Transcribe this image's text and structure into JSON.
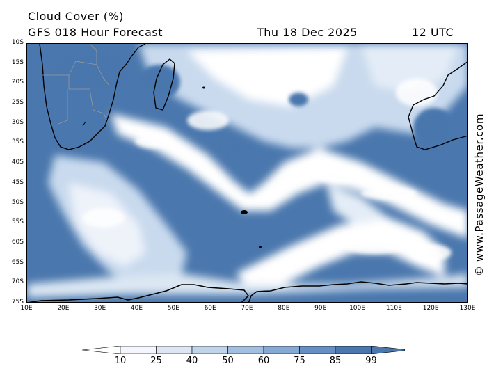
{
  "header": {
    "title": "Cloud Cover (%)",
    "subtitle": "GFS 018 Hour Forecast",
    "date": "Thu 18 Dec 2025",
    "time": "12 UTC"
  },
  "map": {
    "lat_labels": [
      "10S",
      "15S",
      "20S",
      "25S",
      "30S",
      "35S",
      "40S",
      "45S",
      "50S",
      "55S",
      "60S",
      "65S",
      "70S",
      "75S"
    ],
    "lon_labels": [
      "10E",
      "20E",
      "30E",
      "40E",
      "50E",
      "60E",
      "70E",
      "80E",
      "90E",
      "100E",
      "110E",
      "120E",
      "130E"
    ],
    "lat_range": [
      -10,
      -75
    ],
    "lon_range": [
      10,
      130
    ],
    "colors": {
      "ocean_dense": "#4a77ad",
      "cloud_medium": "#8fb0d6",
      "cloud_light": "#c9daee",
      "clear": "#ffffff",
      "coast": "#000000",
      "borders": "#999999"
    }
  },
  "colorbar": {
    "labels": [
      "10",
      "25",
      "40",
      "50",
      "60",
      "75",
      "85",
      "99"
    ],
    "colors": [
      "#ffffff",
      "#f3f7fc",
      "#dce7f3",
      "#c1d4ea",
      "#a3bfe0",
      "#86aad4",
      "#6690c3",
      "#4a77ad"
    ]
  },
  "copyright": "© www.PassageWeather.com"
}
